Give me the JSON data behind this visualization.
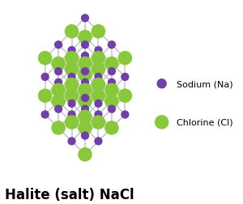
{
  "title": "Halite (salt) NaCl",
  "na_color": "#7040A8",
  "cl_color": "#88C83A",
  "lattice_color": "#C8C8CE",
  "na_s": 55,
  "cl_s": 160,
  "na_label": "Sodium (Na)",
  "cl_label": "Chlorine (Cl)",
  "title_fontsize": 12,
  "legend_fontsize": 8,
  "background_color": "#ffffff",
  "n": 4,
  "line_width": 1.2,
  "na_legend_s": 80,
  "cl_legend_s": 160
}
